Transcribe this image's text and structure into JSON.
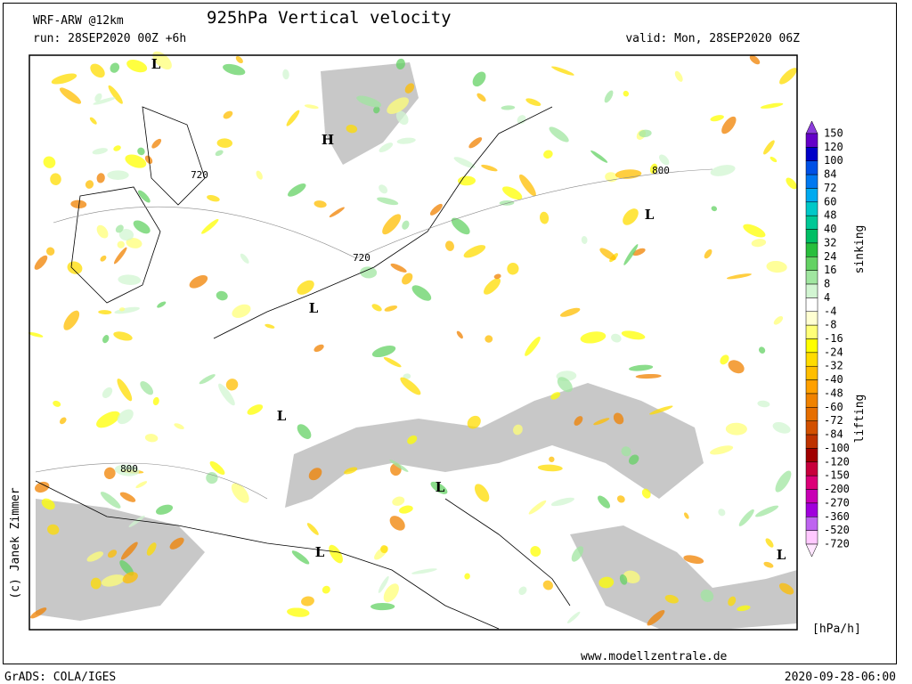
{
  "header": {
    "model": "WRF-ARW @12km",
    "title": "925hPa Vertical velocity",
    "run": "run: 28SEP2020 00Z +6h",
    "valid": "valid: Mon, 28SEP2020 06Z"
  },
  "colorbar": {
    "labels": [
      150,
      120,
      100,
      84,
      72,
      60,
      48,
      40,
      32,
      24,
      16,
      8,
      4,
      -4,
      -8,
      -16,
      -24,
      -32,
      -40,
      -48,
      -60,
      -72,
      -84,
      -100,
      -120,
      -150,
      -200,
      -270,
      -360,
      -520,
      -720
    ],
    "colors": [
      "#8c3cdc",
      "#6400c8",
      "#0000c8",
      "#0050e6",
      "#0078f0",
      "#00aaf0",
      "#00c8c8",
      "#00c896",
      "#00be64",
      "#28be3c",
      "#64d264",
      "#a0e6a0",
      "#d2f5d2",
      "#ffffff",
      "#ffffd2",
      "#ffff78",
      "#ffff00",
      "#ffdc00",
      "#ffbe00",
      "#ffa000",
      "#f08200",
      "#e66e00",
      "#d25000",
      "#be3200",
      "#a00000",
      "#c8003c",
      "#dc0078",
      "#c800b4",
      "#a000dc",
      "#be64f0",
      "#ffc8ff",
      "#ffe6ff"
    ],
    "top_label": "sinking",
    "bottom_label": "lifting",
    "unit": "[hPa/h]"
  },
  "map_labels": [
    "L",
    "H",
    "720",
    "720",
    "800",
    "L",
    "L",
    "L",
    "800",
    "L",
    "L",
    "L"
  ],
  "footer": {
    "copyright": "(c) Janek Zimmer",
    "website": "www.modellzentrale.de",
    "software": "GrADS: COLA/IGES",
    "timestamp": "2020-09-28-06:00"
  }
}
